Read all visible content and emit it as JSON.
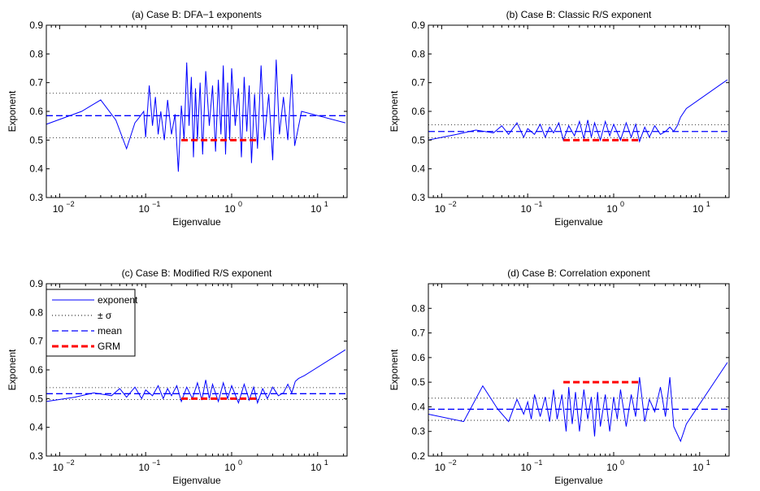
{
  "chart_data": [
    {
      "type": "line",
      "title": "(a) Case B: DFA−1 exponents",
      "xlabel": "Eigenvalue",
      "ylabel": "Exponent",
      "xscale": "log",
      "xlim": [
        0.007,
        22
      ],
      "ylim": [
        0.3,
        0.9
      ],
      "y_ticks": [
        "0.3",
        "0.4",
        "0.5",
        "0.6",
        "0.7",
        "0.8",
        "0.9"
      ],
      "x_ticks": [
        {
          "base": "10",
          "exp": "−2"
        },
        {
          "base": "10",
          "exp": "−1"
        },
        {
          "base": "10",
          "exp": "0"
        },
        {
          "base": "10",
          "exp": "1"
        }
      ],
      "mean": 0.585,
      "sigma_upper": 0.663,
      "sigma_lower": 0.508,
      "grm": {
        "value": 0.5,
        "x_range": [
          0.26,
          2.0
        ]
      },
      "exponent": {
        "x": [
          0.007,
          0.018,
          0.03,
          0.045,
          0.06,
          0.075,
          0.085,
          0.095,
          0.1,
          0.11,
          0.12,
          0.13,
          0.14,
          0.15,
          0.165,
          0.18,
          0.2,
          0.22,
          0.24,
          0.26,
          0.28,
          0.3,
          0.32,
          0.34,
          0.36,
          0.38,
          0.4,
          0.43,
          0.46,
          0.5,
          0.55,
          0.6,
          0.65,
          0.7,
          0.75,
          0.8,
          0.85,
          0.9,
          0.95,
          1.0,
          1.1,
          1.2,
          1.3,
          1.4,
          1.5,
          1.6,
          1.7,
          1.85,
          2.0,
          2.2,
          2.4,
          2.7,
          3.0,
          3.3,
          3.6,
          4.0,
          4.5,
          5.0,
          5.4,
          6.5,
          21
        ],
        "y": [
          0.555,
          0.6,
          0.64,
          0.57,
          0.47,
          0.56,
          0.58,
          0.6,
          0.51,
          0.69,
          0.55,
          0.65,
          0.52,
          0.6,
          0.5,
          0.64,
          0.52,
          0.59,
          0.39,
          0.62,
          0.5,
          0.77,
          0.55,
          0.72,
          0.44,
          0.68,
          0.5,
          0.7,
          0.45,
          0.74,
          0.55,
          0.69,
          0.46,
          0.71,
          0.52,
          0.76,
          0.45,
          0.7,
          0.5,
          0.75,
          0.55,
          0.68,
          0.44,
          0.72,
          0.53,
          0.69,
          0.42,
          0.66,
          0.47,
          0.76,
          0.5,
          0.66,
          0.43,
          0.78,
          0.52,
          0.65,
          0.5,
          0.73,
          0.48,
          0.6,
          0.56
        ]
      }
    },
    {
      "type": "line",
      "title": "(b) Case B: Classic R/S exponent",
      "xlabel": "Eigenvalue",
      "ylabel": "Exponent",
      "xscale": "log",
      "xlim": [
        0.007,
        22
      ],
      "ylim": [
        0.3,
        0.9
      ],
      "y_ticks": [
        "0.3",
        "0.4",
        "0.5",
        "0.6",
        "0.7",
        "0.8",
        "0.9"
      ],
      "x_ticks": [
        {
          "base": "10",
          "exp": "−2"
        },
        {
          "base": "10",
          "exp": "−1"
        },
        {
          "base": "10",
          "exp": "0"
        },
        {
          "base": "10",
          "exp": "1"
        }
      ],
      "mean": 0.53,
      "sigma_upper": 0.553,
      "sigma_lower": 0.508,
      "grm": {
        "value": 0.5,
        "x_range": [
          0.26,
          2.0
        ]
      },
      "exponent": {
        "x": [
          0.007,
          0.015,
          0.025,
          0.04,
          0.05,
          0.06,
          0.075,
          0.09,
          0.1,
          0.12,
          0.14,
          0.16,
          0.18,
          0.2,
          0.23,
          0.26,
          0.3,
          0.35,
          0.4,
          0.45,
          0.5,
          0.55,
          0.6,
          0.7,
          0.8,
          0.9,
          1.0,
          1.2,
          1.4,
          1.6,
          1.8,
          2.0,
          2.3,
          2.6,
          3.0,
          3.5,
          4.0,
          4.5,
          5.0,
          5.5,
          6.0,
          7.0,
          21
        ],
        "y": [
          0.5,
          0.52,
          0.535,
          0.525,
          0.55,
          0.52,
          0.56,
          0.51,
          0.54,
          0.52,
          0.555,
          0.51,
          0.545,
          0.525,
          0.56,
          0.5,
          0.55,
          0.515,
          0.565,
          0.505,
          0.57,
          0.51,
          0.56,
          0.5,
          0.565,
          0.515,
          0.555,
          0.5,
          0.56,
          0.51,
          0.555,
          0.495,
          0.545,
          0.51,
          0.55,
          0.52,
          0.53,
          0.545,
          0.53,
          0.55,
          0.58,
          0.61,
          0.71
        ]
      }
    },
    {
      "type": "line",
      "title": "(c) Case B: Modified R/S exponent",
      "xlabel": "Eigenvalue",
      "ylabel": "Exponent",
      "xscale": "log",
      "xlim": [
        0.007,
        22
      ],
      "ylim": [
        0.3,
        0.9
      ],
      "y_ticks": [
        "0.3",
        "0.4",
        "0.5",
        "0.6",
        "0.7",
        "0.8",
        "0.9"
      ],
      "x_ticks": [
        {
          "base": "10",
          "exp": "−2"
        },
        {
          "base": "10",
          "exp": "−1"
        },
        {
          "base": "10",
          "exp": "0"
        },
        {
          "base": "10",
          "exp": "1"
        }
      ],
      "mean": 0.517,
      "sigma_upper": 0.538,
      "sigma_lower": 0.497,
      "grm": {
        "value": 0.5,
        "x_range": [
          0.26,
          2.0
        ]
      },
      "exponent": {
        "x": [
          0.007,
          0.015,
          0.025,
          0.04,
          0.05,
          0.06,
          0.075,
          0.09,
          0.1,
          0.12,
          0.14,
          0.16,
          0.18,
          0.2,
          0.23,
          0.26,
          0.3,
          0.35,
          0.4,
          0.45,
          0.5,
          0.55,
          0.6,
          0.7,
          0.8,
          0.9,
          1.0,
          1.2,
          1.4,
          1.6,
          1.8,
          2.0,
          2.3,
          2.6,
          3.0,
          3.5,
          4.0,
          4.5,
          5.0,
          5.5,
          6.0,
          7.0,
          21
        ],
        "y": [
          0.49,
          0.505,
          0.52,
          0.51,
          0.535,
          0.505,
          0.54,
          0.5,
          0.53,
          0.51,
          0.545,
          0.5,
          0.535,
          0.51,
          0.545,
          0.49,
          0.54,
          0.5,
          0.555,
          0.495,
          0.565,
          0.5,
          0.55,
          0.49,
          0.555,
          0.5,
          0.545,
          0.485,
          0.55,
          0.495,
          0.54,
          0.485,
          0.535,
          0.5,
          0.54,
          0.51,
          0.52,
          0.55,
          0.52,
          0.56,
          0.57,
          0.58,
          0.67
        ]
      }
    },
    {
      "type": "line",
      "title": "(d) Case B: Correlation exponent",
      "xlabel": "Eigenvalue",
      "ylabel": "Exponent",
      "xscale": "log",
      "xlim": [
        0.007,
        22
      ],
      "ylim": [
        0.2,
        0.9
      ],
      "y_ticks": [
        "0.2",
        "0.3",
        "0.4",
        "0.5",
        "0.6",
        "0.7",
        "0.8"
      ],
      "x_ticks": [
        {
          "base": "10",
          "exp": "−2"
        },
        {
          "base": "10",
          "exp": "−1"
        },
        {
          "base": "10",
          "exp": "0"
        },
        {
          "base": "10",
          "exp": "1"
        }
      ],
      "mean": 0.39,
      "sigma_upper": 0.435,
      "sigma_lower": 0.345,
      "grm": {
        "value": 0.5,
        "x_range": [
          0.26,
          2.0
        ]
      },
      "exponent": {
        "x": [
          0.007,
          0.018,
          0.03,
          0.045,
          0.06,
          0.075,
          0.09,
          0.1,
          0.11,
          0.12,
          0.14,
          0.16,
          0.18,
          0.2,
          0.22,
          0.25,
          0.28,
          0.3,
          0.33,
          0.36,
          0.4,
          0.45,
          0.5,
          0.55,
          0.6,
          0.65,
          0.7,
          0.8,
          0.9,
          1.0,
          1.1,
          1.2,
          1.4,
          1.6,
          1.8,
          2.0,
          2.3,
          2.6,
          3.0,
          3.5,
          4.0,
          4.5,
          5.0,
          6.0,
          7.0,
          21
        ],
        "y": [
          0.37,
          0.34,
          0.485,
          0.39,
          0.34,
          0.43,
          0.37,
          0.42,
          0.35,
          0.45,
          0.36,
          0.44,
          0.34,
          0.47,
          0.35,
          0.45,
          0.3,
          0.48,
          0.33,
          0.46,
          0.3,
          0.47,
          0.35,
          0.44,
          0.28,
          0.46,
          0.32,
          0.45,
          0.3,
          0.44,
          0.35,
          0.47,
          0.32,
          0.45,
          0.36,
          0.52,
          0.34,
          0.43,
          0.38,
          0.48,
          0.36,
          0.52,
          0.32,
          0.26,
          0.33,
          0.58
        ]
      }
    }
  ],
  "legend": {
    "items": [
      {
        "label": "exponent",
        "style": "solid",
        "color": "#0000ff"
      },
      {
        "label": "± σ",
        "style": "dotted",
        "color": "#000000"
      },
      {
        "label": "mean",
        "style": "dashed",
        "color": "#0000ff"
      },
      {
        "label": "GRM",
        "style": "thick-dashed",
        "color": "#ff0000"
      }
    ],
    "placement": "top-left of panel (c)"
  },
  "colors": {
    "exponent": "#0000ff",
    "mean": "#0000ff",
    "sigma": "#000000",
    "grm": "#ff0000"
  }
}
